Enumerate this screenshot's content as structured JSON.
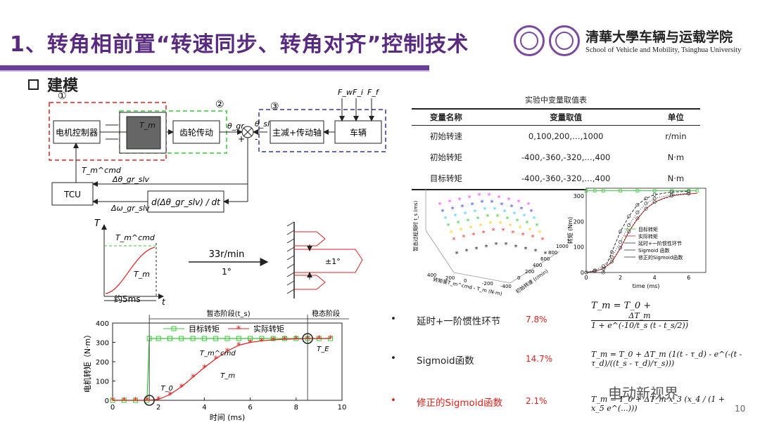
{
  "header": {
    "title": "1、转角相前置“转速同步、转角对齐”控制技术",
    "university_cn": "清華大學车辆与运载学院",
    "university_en": "School of Vehicle and Mobility, Tsinghua University"
  },
  "section": {
    "label": "建模"
  },
  "block_diagram": {
    "markers": [
      "①",
      "②",
      "③"
    ],
    "blocks": {
      "motor_controller": "电机控制器",
      "gear_drive": "齿轮传动",
      "final_drive": "主减+传动轴",
      "vehicle": "车辆",
      "tcu": "TCU",
      "derivative": "d(Δθ_gr_slv) / dt"
    },
    "labels": {
      "tm": "T_m",
      "theta_gr": "θ_gr",
      "theta_slv": "θ_slv",
      "plus": "+",
      "minus": "-",
      "fw": "F_w",
      "fi": "F_i",
      "ff": "F_f",
      "tm_cmd": "T_m^cmd",
      "delta_theta": "Δθ_gr_slv",
      "delta_omega": "Δω_gr_slv"
    }
  },
  "mini_diagrams": {
    "t_axis": "T",
    "tm_cmd": "T_m^cmd",
    "tm": "T_m",
    "t": "t",
    "duration": "约5ms",
    "speed": "33r/min",
    "angle": "1°",
    "tolerance": "±1°"
  },
  "table": {
    "caption": "实验中变量取值表",
    "headers": [
      "变量名称",
      "变量取值",
      "单位"
    ],
    "rows": [
      [
        "初始转速",
        "0,100,200,…,1000",
        "r/min"
      ],
      [
        "初始转矩",
        "-400,-360,-320,…,400",
        "N·m"
      ],
      [
        "目标转矩",
        "-400,-360,-320,…,400",
        "N·m"
      ]
    ]
  },
  "chart_data": [
    {
      "type": "line",
      "title": "",
      "xlabel": "时间 (ms)",
      "ylabel": "电机转矩（N·m）",
      "xlim": [
        0,
        10
      ],
      "ylim": [
        0,
        400
      ],
      "xticks": [
        "0",
        "2",
        "4",
        "6",
        "8",
        "10"
      ],
      "yticks": [
        "0",
        "100",
        "200",
        "300",
        "400"
      ],
      "series": [
        {
          "name": "目标转矩",
          "color": "#33cc33",
          "marker": "square",
          "x": [
            0,
            0.5,
            1,
            1.5,
            1.6,
            2,
            2.5,
            3,
            3.5,
            4,
            4.5,
            5,
            5.5,
            6,
            6.5,
            7,
            7.5,
            8,
            8.5,
            9,
            9.5
          ],
          "y": [
            0,
            0,
            0,
            0,
            320,
            320,
            320,
            320,
            320,
            320,
            320,
            320,
            320,
            320,
            320,
            320,
            320,
            320,
            320,
            320,
            320
          ]
        },
        {
          "name": "实际转矩",
          "color": "#e02020",
          "marker": "star",
          "x": [
            0,
            0.5,
            1,
            1.5,
            2,
            2.5,
            3,
            3.5,
            4,
            4.5,
            5,
            5.5,
            6,
            6.5,
            7,
            7.5,
            8,
            8.5,
            9,
            9.5
          ],
          "y": [
            0,
            0,
            0,
            0,
            5,
            30,
            70,
            120,
            170,
            215,
            255,
            285,
            300,
            308,
            313,
            316,
            318,
            320,
            320,
            320
          ]
        }
      ],
      "annotations": [
        "暂态阶段(t_s)",
        "稳态阶段",
        "T_m^cmd",
        "T_m",
        "T_0",
        "T_E"
      ]
    },
    {
      "type": "scatter",
      "title": "",
      "xlabel": "转矩差T_m^cmd - T_m (N·m)",
      "ylabel": "暂态过程用时 t_s (ms)",
      "zlabel": "初始转速 (r/min)",
      "xticks": [
        "400",
        "200",
        "0",
        "-200",
        "-400"
      ],
      "zticks": [
        "0",
        "200",
        "400",
        "600",
        "800",
        "1000"
      ],
      "series_colors": [
        "#ff33ff",
        "#3333ff",
        "#33ccff",
        "#33cc33",
        "#ffcc00",
        "#ff2222",
        "#111111"
      ]
    },
    {
      "type": "line",
      "title": "",
      "xlabel": "time (ms)",
      "ylabel": "转矩 (Nm)",
      "xlim": [
        0,
        7
      ],
      "ylim": [
        0,
        330
      ],
      "xticks": [
        "0",
        "2",
        "4",
        "6"
      ],
      "yticks": [
        "0",
        "100",
        "200",
        "300"
      ],
      "series": [
        {
          "name": "目标转矩",
          "color": "#33cc33",
          "x": [
            0,
            0.5,
            1,
            2,
            3,
            4,
            5,
            6,
            6.5
          ],
          "y": [
            320,
            320,
            320,
            320,
            320,
            320,
            320,
            320,
            320
          ]
        },
        {
          "name": "实际转矩",
          "color": "#e02020",
          "x": [
            0,
            0.5,
            1,
            1.5,
            2,
            2.5,
            3,
            3.5,
            4,
            4.5,
            5,
            5.5,
            6,
            6.5
          ],
          "y": [
            0,
            5,
            15,
            40,
            95,
            160,
            210,
            250,
            275,
            290,
            300,
            305,
            308,
            310
          ]
        },
        {
          "name": "延时+一阶惯性环节",
          "color": "#333333",
          "x": [
            0,
            1,
            1.5,
            2,
            2.5,
            3,
            3.5,
            4,
            5,
            6
          ],
          "y": [
            0,
            0,
            80,
            160,
            220,
            265,
            290,
            305,
            315,
            318
          ]
        },
        {
          "name": "Sigmoid 函数",
          "color": "#333333",
          "x": [
            0,
            0.5,
            1,
            1.5,
            2,
            2.5,
            3,
            3.5,
            4,
            5,
            6
          ],
          "y": [
            0,
            8,
            25,
            60,
            120,
            185,
            235,
            270,
            290,
            305,
            310
          ]
        },
        {
          "name": "修正的Sigmoid函数",
          "color": "#333333",
          "x": [
            0,
            0.5,
            1,
            1.5,
            2,
            2.5,
            3,
            3.5,
            4,
            5,
            6
          ],
          "y": [
            0,
            5,
            15,
            42,
            97,
            160,
            212,
            250,
            276,
            300,
            309
          ]
        }
      ]
    }
  ],
  "methods": [
    {
      "name": "延时+一阶惯性环节",
      "error": "7.8%",
      "highlight": false
    },
    {
      "name": "Sigmoid函数",
      "error": "14.7%",
      "highlight": false
    },
    {
      "name": "修正的Sigmoid函数",
      "error": "2.1%",
      "highlight": true
    }
  ],
  "formulas": {
    "f1_lhs": "T_m = T_0 +",
    "f1_num": "ΔT_m",
    "f1_den": "1 + e^(-10/t_s (t - t_s/2))",
    "f2": "T_m = T_0 + ΔT_m (1(t - τ_d) - e^(-(t - τ_d)/((t_s - τ_d)/τ_s)))",
    "f3": "T_m = T_0 + ΔT_m x_3 (x_4 / (1 + x_5 e^(...)))"
  },
  "watermark": "电动新视界",
  "page_number": "10"
}
